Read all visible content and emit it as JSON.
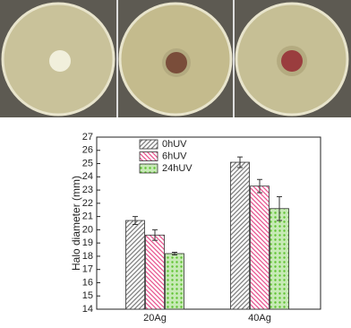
{
  "chart_data": {
    "type": "bar",
    "y_label": "Halo diameter (mm)",
    "categories": [
      "20Ag",
      "40Ag"
    ],
    "series": [
      {
        "name": "0hUV",
        "color": "#7f7f7f",
        "values": [
          20.7,
          25.1
        ],
        "errors": [
          0.3,
          0.4
        ]
      },
      {
        "name": "6hUV",
        "color": "#e8558f",
        "values": [
          19.6,
          23.3
        ],
        "errors": [
          0.4,
          0.5
        ]
      },
      {
        "name": "24hUV",
        "color": "#5ec22f",
        "values": [
          18.2,
          21.6
        ],
        "errors": [
          0.1,
          0.9
        ]
      }
    ],
    "ylim": [
      14,
      27
    ],
    "yticks": [
      14,
      15,
      16,
      17,
      18,
      19,
      20,
      21,
      22,
      23,
      24,
      25,
      26,
      27
    ],
    "legend": "upper-left"
  }
}
